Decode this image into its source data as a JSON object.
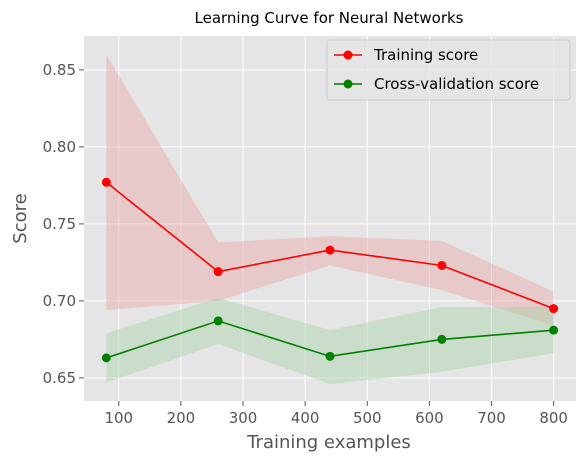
{
  "chart_data": {
    "type": "line",
    "title": "Learning Curve for Neural Networks",
    "xlabel": "Training examples",
    "ylabel": "Score",
    "xlim": [
      44,
      836
    ],
    "ylim": [
      0.635,
      0.872
    ],
    "xticks": [
      100,
      200,
      300,
      400,
      500,
      600,
      700,
      800
    ],
    "yticks": [
      0.65,
      0.7,
      0.75,
      0.8,
      0.85
    ],
    "ytick_labels": [
      "0.65",
      "0.70",
      "0.75",
      "0.80",
      "0.85"
    ],
    "grid": true,
    "legend_position": "upper right",
    "x": [
      80,
      260,
      440,
      620,
      800
    ],
    "series": [
      {
        "name": "Training score",
        "color": "#ff0000",
        "band_color": "#e8a6a6",
        "values": [
          0.777,
          0.719,
          0.733,
          0.723,
          0.695
        ],
        "lower": [
          0.694,
          0.7,
          0.723,
          0.707,
          0.684
        ],
        "upper": [
          0.86,
          0.738,
          0.742,
          0.739,
          0.706
        ]
      },
      {
        "name": "Cross-validation score",
        "color": "#008000",
        "band_color": "#a8d0a8",
        "values": [
          0.663,
          0.687,
          0.664,
          0.675,
          0.681
        ],
        "lower": [
          0.647,
          0.672,
          0.646,
          0.654,
          0.666
        ],
        "upper": [
          0.679,
          0.702,
          0.681,
          0.696,
          0.696
        ]
      }
    ]
  }
}
